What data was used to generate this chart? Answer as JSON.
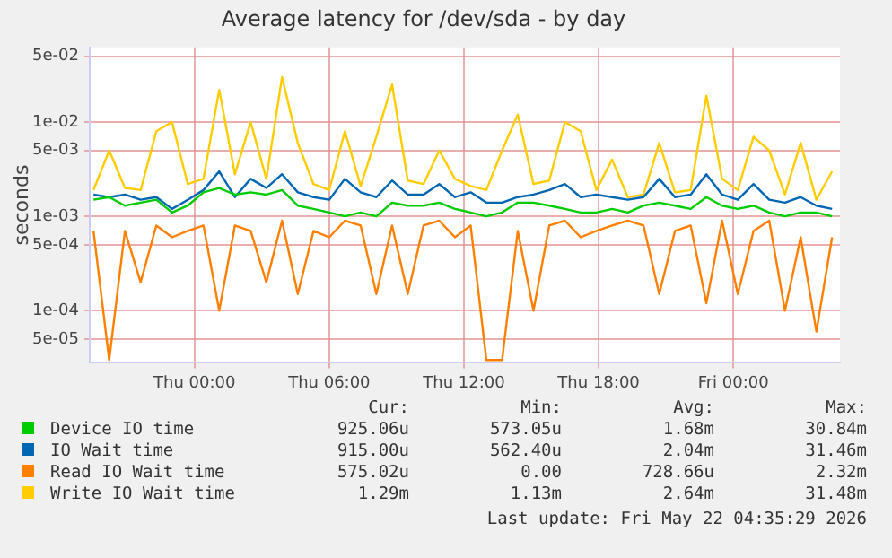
{
  "chart_data": {
    "type": "line",
    "title": "Average latency for /dev/sda - by day",
    "ylabel": "seconds",
    "log": "y",
    "grid": true,
    "legend": "bottom",
    "x": [
      "2026-05-20T19:30",
      "2026-05-20T20:12",
      "2026-05-20T20:54",
      "2026-05-20T21:36",
      "2026-05-20T22:18",
      "2026-05-20T23:00",
      "2026-05-20T23:42",
      "2026-05-21T00:24",
      "2026-05-21T01:06",
      "2026-05-21T01:48",
      "2026-05-21T02:30",
      "2026-05-21T03:12",
      "2026-05-21T03:54",
      "2026-05-21T04:36",
      "2026-05-21T05:18",
      "2026-05-21T06:00",
      "2026-05-21T06:42",
      "2026-05-21T07:24",
      "2026-05-21T08:06",
      "2026-05-21T08:48",
      "2026-05-21T09:30",
      "2026-05-21T10:12",
      "2026-05-21T10:54",
      "2026-05-21T11:36",
      "2026-05-21T12:18",
      "2026-05-21T13:00",
      "2026-05-21T13:42",
      "2026-05-21T14:24",
      "2026-05-21T15:06",
      "2026-05-21T15:48",
      "2026-05-21T16:30",
      "2026-05-21T17:12",
      "2026-05-21T17:54",
      "2026-05-21T18:36",
      "2026-05-21T19:18",
      "2026-05-21T20:00",
      "2026-05-21T20:42",
      "2026-05-21T21:24",
      "2026-05-21T22:06",
      "2026-05-21T22:48",
      "2026-05-21T23:30",
      "2026-05-22T00:12",
      "2026-05-22T00:54",
      "2026-05-22T01:36",
      "2026-05-22T02:18",
      "2026-05-22T03:00",
      "2026-05-22T03:42",
      "2026-05-22T04:24"
    ],
    "xlim": [
      "2026-05-20T19:20",
      "2026-05-22T04:45"
    ],
    "xticks": [
      {
        "value": "2026-05-21T00:00",
        "label": "Thu 00:00"
      },
      {
        "value": "2026-05-21T06:00",
        "label": "Thu 06:00"
      },
      {
        "value": "2026-05-21T12:00",
        "label": "Thu 12:00"
      },
      {
        "value": "2026-05-21T18:00",
        "label": "Thu 18:00"
      },
      {
        "value": "2026-05-22T00:00",
        "label": "Fri 00:00"
      }
    ],
    "ylim": [
      2.8e-05,
      0.062
    ],
    "yticks": [
      {
        "value": 5e-05,
        "label": "5e-05"
      },
      {
        "value": 0.0001,
        "label": "1e-04"
      },
      {
        "value": 0.0005,
        "label": "5e-04"
      },
      {
        "value": 0.001,
        "label": "1e-03"
      },
      {
        "value": 0.005,
        "label": "5e-03"
      },
      {
        "value": 0.01,
        "label": "1e-02"
      },
      {
        "value": 0.05,
        "label": "5e-02"
      }
    ],
    "series": [
      {
        "name": "Device IO time",
        "color": "#00cc00",
        "values": [
          0.0015,
          0.0016,
          0.0013,
          0.0014,
          0.0015,
          0.0011,
          0.0013,
          0.0018,
          0.002,
          0.0017,
          0.0018,
          0.0017,
          0.0019,
          0.0013,
          0.0012,
          0.0011,
          0.001,
          0.0011,
          0.001,
          0.0014,
          0.0013,
          0.0013,
          0.0014,
          0.0012,
          0.0011,
          0.001,
          0.0011,
          0.0014,
          0.0014,
          0.0013,
          0.0012,
          0.0011,
          0.0011,
          0.0012,
          0.0011,
          0.0013,
          0.0014,
          0.0013,
          0.0012,
          0.0016,
          0.0013,
          0.0012,
          0.0013,
          0.0011,
          0.001,
          0.0011,
          0.0011,
          0.001
        ]
      },
      {
        "name": "IO Wait time",
        "color": "#0066b3",
        "values": [
          0.0017,
          0.0016,
          0.0017,
          0.0015,
          0.0016,
          0.0012,
          0.0015,
          0.0019,
          0.003,
          0.0016,
          0.0025,
          0.002,
          0.0028,
          0.0018,
          0.0016,
          0.0015,
          0.0025,
          0.0018,
          0.0016,
          0.0024,
          0.0017,
          0.0017,
          0.0022,
          0.0016,
          0.0018,
          0.0014,
          0.0014,
          0.0016,
          0.0017,
          0.0019,
          0.0022,
          0.0016,
          0.0017,
          0.0016,
          0.0015,
          0.0016,
          0.0025,
          0.0016,
          0.0017,
          0.0028,
          0.0017,
          0.0015,
          0.0022,
          0.0015,
          0.0014,
          0.0016,
          0.0013,
          0.0012
        ]
      },
      {
        "name": "Read IO Wait time",
        "color": "#ff8000",
        "values": [
          0.0007,
          3e-05,
          0.0007,
          0.0002,
          0.0008,
          0.0006,
          0.0007,
          0.0008,
          0.0001,
          0.0008,
          0.0007,
          0.0002,
          0.0009,
          0.00015,
          0.0007,
          0.0006,
          0.0009,
          0.0008,
          0.00015,
          0.0008,
          0.00015,
          0.0008,
          0.0009,
          0.0006,
          0.0008,
          3e-05,
          3e-05,
          0.0007,
          0.0001,
          0.0008,
          0.0009,
          0.0006,
          0.0007,
          0.0008,
          0.0009,
          0.0008,
          0.00015,
          0.0007,
          0.0008,
          0.00012,
          0.0009,
          0.00015,
          0.0007,
          0.0009,
          0.0001,
          0.0006,
          6e-05,
          0.0006
        ]
      },
      {
        "name": "Write IO Wait time",
        "color": "#ffcc00",
        "values": [
          0.0019,
          0.005,
          0.002,
          0.0019,
          0.008,
          0.01,
          0.0022,
          0.0025,
          0.022,
          0.0028,
          0.01,
          0.0025,
          0.03,
          0.006,
          0.0022,
          0.0019,
          0.008,
          0.0021,
          0.007,
          0.025,
          0.0024,
          0.0022,
          0.005,
          0.0025,
          0.0021,
          0.0019,
          0.005,
          0.012,
          0.0022,
          0.0024,
          0.01,
          0.008,
          0.0019,
          0.004,
          0.0016,
          0.0017,
          0.006,
          0.0018,
          0.0019,
          0.019,
          0.0025,
          0.0019,
          0.007,
          0.005,
          0.0017,
          0.006,
          0.0015,
          0.003
        ]
      }
    ],
    "annotations": [
      "Cur:",
      "Min:",
      "Avg:",
      "Max:",
      "925.06u",
      "573.05u",
      "1.68m",
      "30.84m",
      "915.00u",
      "562.40u",
      "2.04m",
      "31.46m",
      "575.02u",
      "0.00",
      "728.66u",
      "2.32m",
      "1.29m",
      "1.13m",
      "2.64m",
      "31.48m",
      "Last update: Fri May 22 04:35:29 2026"
    ]
  }
}
